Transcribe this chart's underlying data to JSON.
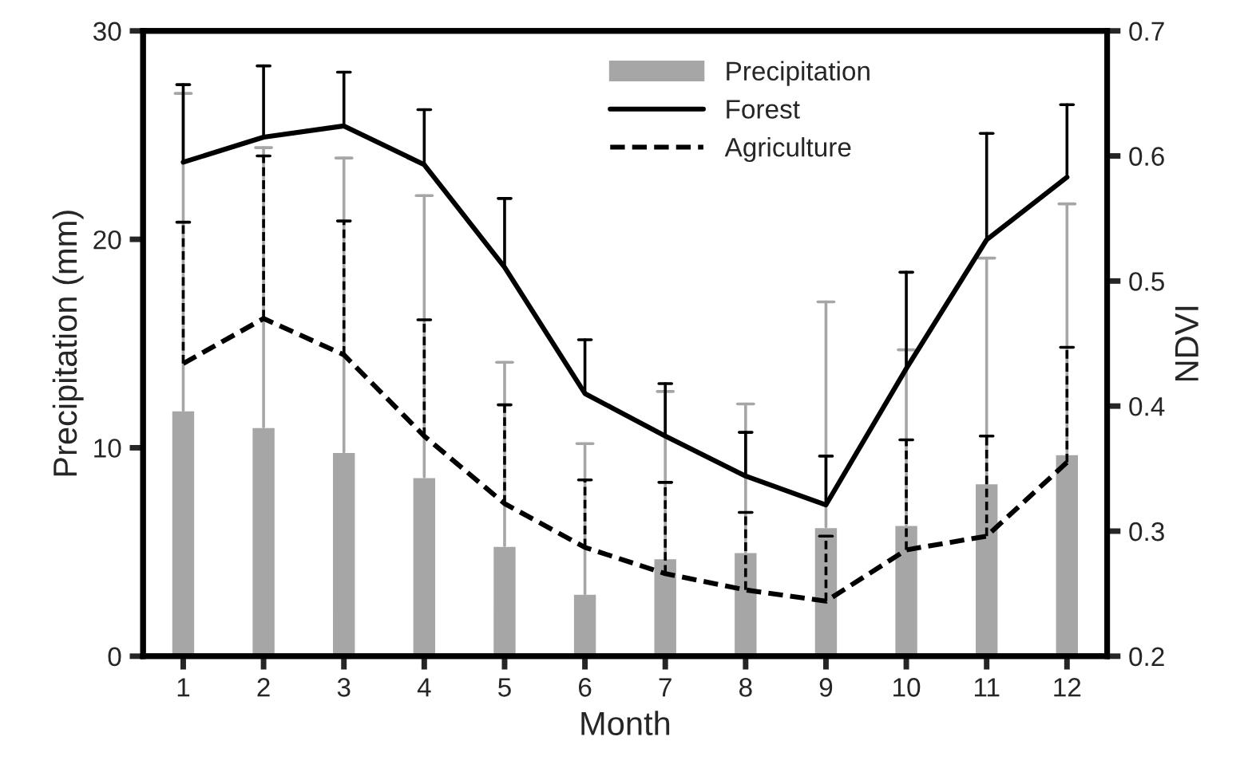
{
  "chart_data": {
    "type": "bar",
    "xlabel": "Month",
    "ylabel": "Precipitation (mm)",
    "y2label": "NDVI",
    "categories": [
      "1",
      "2",
      "3",
      "4",
      "5",
      "6",
      "7",
      "8",
      "9",
      "10",
      "11",
      "12"
    ],
    "ylim": [
      0,
      30
    ],
    "yticks": [
      0,
      10,
      20,
      30
    ],
    "y2lim": [
      0.2,
      0.7
    ],
    "y2ticks": [
      0.2,
      0.3,
      0.4,
      0.5,
      0.6,
      0.7
    ],
    "legend": "top right",
    "grid": false,
    "series": [
      {
        "name": "Precipitation",
        "color": "#a6a6a6",
        "values": [
          11.8,
          11.0,
          9.8,
          8.6,
          5.3,
          3.0,
          4.7,
          5.0,
          6.2,
          6.3,
          8.3,
          9.7
        ],
        "errors": [
          [
            11.8,
            27.0
          ],
          [
            11.0,
            24.4
          ],
          [
            9.8,
            23.9
          ],
          [
            8.6,
            22.1
          ],
          [
            5.3,
            14.1
          ],
          [
            3.0,
            10.2
          ],
          [
            4.7,
            12.7
          ],
          [
            5.0,
            12.1
          ],
          [
            6.2,
            17.0
          ],
          [
            6.3,
            14.7
          ],
          [
            8.3,
            19.1
          ],
          [
            9.7,
            21.7
          ]
        ]
      },
      {
        "name": "Forest",
        "type": "line",
        "axis": "y2",
        "color": "#000000",
        "line_style": "solid",
        "values": [
          0.595,
          0.615,
          0.624,
          0.593,
          0.511,
          0.41,
          0.376,
          0.344,
          0.321,
          0.43,
          0.533,
          0.583
        ],
        "errors": [
          [
            0.595,
            0.657
          ],
          [
            0.615,
            0.672
          ],
          [
            0.624,
            0.667
          ],
          [
            0.593,
            0.637
          ],
          [
            0.511,
            0.566
          ],
          [
            0.41,
            0.453
          ],
          [
            0.376,
            0.418
          ],
          [
            0.344,
            0.379
          ],
          [
            0.321,
            0.36
          ],
          [
            0.43,
            0.507
          ],
          [
            0.533,
            0.618
          ],
          [
            0.583,
            0.641
          ]
        ]
      },
      {
        "name": "Agriculture",
        "type": "line",
        "axis": "y2",
        "color": "#000000",
        "line_style": "dashed",
        "values": [
          0.434,
          0.47,
          0.441,
          0.376,
          0.322,
          0.287,
          0.266,
          0.253,
          0.244,
          0.285,
          0.296,
          0.355
        ],
        "errors": [
          [
            0.434,
            0.547
          ],
          [
            0.47,
            0.6
          ],
          [
            0.441,
            0.548
          ],
          [
            0.376,
            0.469
          ],
          [
            0.322,
            0.401
          ],
          [
            0.287,
            0.341
          ],
          [
            0.266,
            0.339
          ],
          [
            0.253,
            0.315
          ],
          [
            0.244,
            0.296
          ],
          [
            0.285,
            0.373
          ],
          [
            0.296,
            0.376
          ],
          [
            0.355,
            0.447
          ]
        ]
      }
    ]
  }
}
